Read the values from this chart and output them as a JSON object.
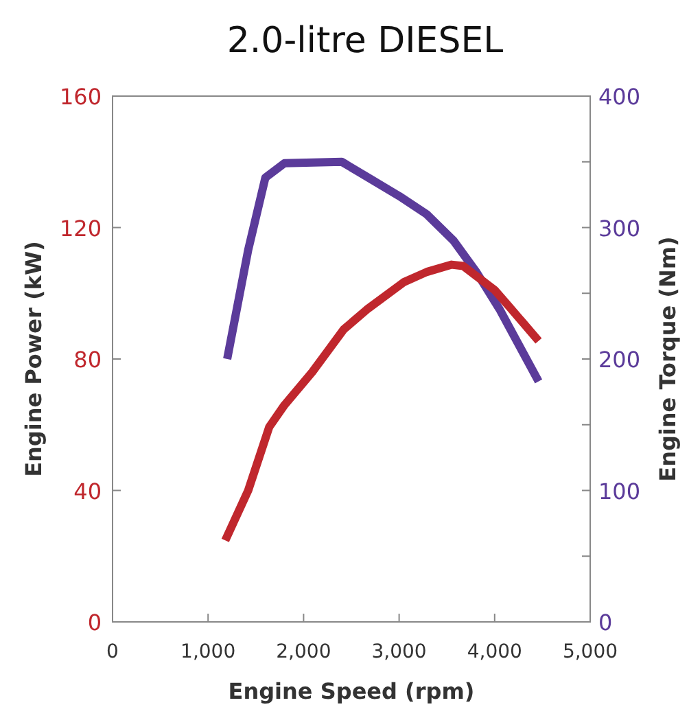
{
  "chart_data": {
    "type": "line",
    "title": "2.0-litre DIESEL",
    "xlabel": "Engine Speed (rpm)",
    "ylabel": "Engine Power (kW)",
    "y2label": "Engine Torque (Nm)",
    "xlim": [
      0,
      5000
    ],
    "xticks": [
      0,
      {
        "value": 1000,
        "label": "1,000"
      },
      {
        "value": 2000,
        "label": "2,000"
      },
      {
        "value": 3000,
        "label": "3,000"
      },
      {
        "value": 4000,
        "label": "4,000"
      },
      {
        "value": 5000,
        "label": "5,000"
      }
    ],
    "ylim": [
      0,
      160
    ],
    "yticks": [
      0,
      40,
      80,
      120,
      160
    ],
    "y2lim": [
      0,
      400
    ],
    "y2ticks": [
      0,
      {
        "value": 50,
        "label": null
      },
      100,
      {
        "value": 150,
        "label": null
      },
      200,
      {
        "value": 250,
        "label": null
      },
      300,
      {
        "value": 350,
        "label": null
      },
      400
    ],
    "grid": false,
    "marker": "none",
    "line_style": "solid",
    "series": [
      {
        "color": "#5b3b9a",
        "axis": "y2",
        "x": [
          1200,
          1420,
          1600,
          1800,
          2400,
          3000,
          3290,
          3570,
          3810,
          4050,
          4460
        ],
        "values": [
          200,
          283,
          338,
          349,
          350,
          324,
          310,
          290,
          266,
          238,
          183
        ]
      },
      {
        "color": "#c0272d",
        "x": [
          1180,
          1420,
          1640,
          1800,
          2090,
          2420,
          2660,
          3050,
          3290,
          3550,
          3670,
          4000,
          4150,
          4460
        ],
        "values": [
          24.8,
          40,
          59.3,
          66,
          76,
          89,
          95,
          103.4,
          106.5,
          108.7,
          108.3,
          101,
          96,
          85.5
        ]
      }
    ]
  }
}
